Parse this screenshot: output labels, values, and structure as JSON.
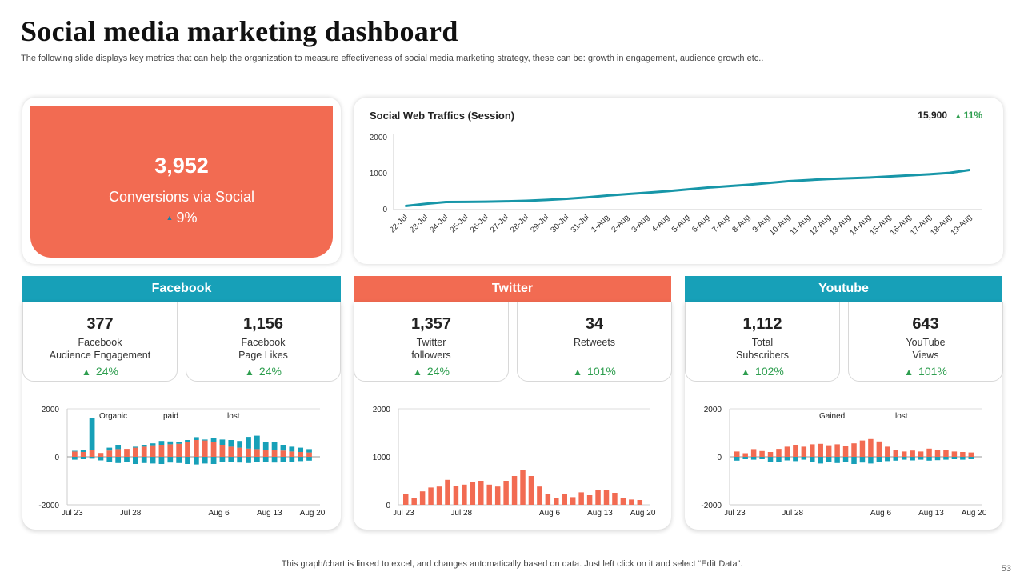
{
  "header": {
    "title": "Social media marketing dashboard",
    "subtitle": "The following slide displays key metrics that can help the organization to measure effectiveness of social media marketing strategy, these can be: growth in engagement, audience growth etc.."
  },
  "conversions": {
    "value": "3,952",
    "label": "Conversions via Social",
    "change": "9%"
  },
  "traffic": {
    "title": "Social Web Traffics (Session)",
    "total": "15,900",
    "change": "11%"
  },
  "sections": {
    "facebook": {
      "title": "Facebook",
      "metrics": [
        {
          "value": "377",
          "label": "Facebook\nAudience Engagement",
          "change": "24%"
        },
        {
          "value": "1,156",
          "label": "Facebook\nPage Likes",
          "change": "24%"
        }
      ]
    },
    "twitter": {
      "title": "Twitter",
      "metrics": [
        {
          "value": "1,357",
          "label": "Twitter\nfollowers",
          "change": "24%"
        },
        {
          "value": "34",
          "label": "Retweets",
          "change": "101%"
        }
      ]
    },
    "youtube": {
      "title": "Youtube",
      "metrics": [
        {
          "value": "1,112",
          "label": "Total\nSubscribers",
          "change": "102%"
        },
        {
          "value": "643",
          "label": "YouTube\nViews",
          "change": "101%"
        }
      ]
    }
  },
  "colors": {
    "teal": "#17a0b8",
    "coral": "#f26b52",
    "green": "#2e9e4f",
    "line": "#1796a8"
  },
  "footer": {
    "note": "This graph/chart is linked to excel,  and changes automatically based on data. Just left click on it and select “Edit Data”.",
    "page": "53"
  },
  "chart_data": [
    {
      "type": "line",
      "title": "Social Web Traffics (Session)",
      "categories": [
        "22-Jul",
        "23-Jul",
        "24-Jul",
        "25-Jul",
        "26-Jul",
        "27-Jul",
        "28-Jul",
        "29-Jul",
        "30-Jul",
        "31-Jul",
        "1-Aug",
        "2-Aug",
        "3-Aug",
        "4-Aug",
        "5-Aug",
        "6-Aug",
        "7-Aug",
        "8-Aug",
        "9-Aug",
        "10-Aug",
        "11-Aug",
        "12-Aug",
        "13-Aug",
        "14-Aug",
        "15-Aug",
        "16-Aug",
        "17-Aug",
        "18-Aug",
        "19-Aug"
      ],
      "values": [
        100,
        160,
        210,
        215,
        220,
        230,
        245,
        270,
        300,
        340,
        390,
        430,
        470,
        510,
        560,
        610,
        650,
        690,
        740,
        790,
        820,
        850,
        870,
        890,
        920,
        950,
        980,
        1020,
        1100
      ],
      "ylim": [
        0,
        2000
      ],
      "yticks": [
        0,
        1000,
        2000
      ]
    },
    {
      "type": "bar",
      "name": "facebook",
      "legend": [
        "Organic",
        "paid",
        "lost"
      ],
      "xticks": [
        "Jul 23",
        "Jul 28",
        "Aug 6",
        "Aug 13",
        "Aug 20"
      ],
      "ylim": [
        -2000,
        2000
      ],
      "yticks": [
        2000,
        0,
        -2000
      ],
      "series": [
        {
          "name": "Organic",
          "values": [
            250,
            300,
            1600,
            150,
            380,
            500,
            320,
            420,
            500,
            560,
            660,
            640,
            620,
            700,
            820,
            720,
            780,
            720,
            700,
            660,
            830,
            880,
            620,
            600,
            500,
            420,
            380,
            320
          ]
        },
        {
          "name": "paid",
          "values": [
            220,
            200,
            300,
            160,
            260,
            320,
            330,
            380,
            420,
            480,
            500,
            520,
            540,
            600,
            700,
            680,
            600,
            500,
            420,
            380,
            340,
            320,
            300,
            280,
            260,
            220,
            200,
            180
          ]
        },
        {
          "name": "lost",
          "values": [
            -120,
            -100,
            -80,
            -150,
            -200,
            -260,
            -220,
            -300,
            -260,
            -280,
            -300,
            -240,
            -260,
            -300,
            -320,
            -280,
            -300,
            -220,
            -200,
            -240,
            -260,
            -220,
            -200,
            -240,
            -220,
            -200,
            -180,
            -160
          ]
        }
      ]
    },
    {
      "type": "bar",
      "name": "twitter",
      "xticks": [
        "Jul 23",
        "Jul 28",
        "Aug 6",
        "Aug 13",
        "Aug 20"
      ],
      "ylim": [
        0,
        2000
      ],
      "yticks": [
        2000,
        1000,
        0
      ],
      "series": [
        {
          "name": "followers",
          "values": [
            220,
            150,
            280,
            360,
            380,
            520,
            400,
            420,
            480,
            500,
            420,
            380,
            500,
            600,
            720,
            600,
            380,
            220,
            150,
            220,
            160,
            260,
            200,
            300,
            300,
            250,
            140,
            110,
            100
          ]
        }
      ]
    },
    {
      "type": "bar",
      "name": "youtube",
      "legend": [
        "Gained",
        "lost"
      ],
      "xticks": [
        "Jul 23",
        "Jul 28",
        "Aug 6",
        "Aug 13",
        "Aug 20"
      ],
      "ylim": [
        -2000,
        2000
      ],
      "yticks": [
        2000,
        0,
        -2000
      ],
      "series": [
        {
          "name": "Gained",
          "values": [
            220,
            150,
            320,
            240,
            200,
            330,
            420,
            500,
            420,
            520,
            540,
            480,
            520,
            440,
            560,
            680,
            740,
            640,
            420,
            300,
            220,
            260,
            220,
            340,
            300,
            280,
            220,
            200,
            180
          ]
        },
        {
          "name": "lost",
          "values": [
            -160,
            -100,
            -120,
            -100,
            -220,
            -200,
            -150,
            -180,
            -120,
            -220,
            -280,
            -220,
            -260,
            -200,
            -300,
            -240,
            -280,
            -200,
            -180,
            -160,
            -120,
            -150,
            -120,
            -160,
            -140,
            -120,
            -100,
            -120,
            -100
          ]
        }
      ]
    }
  ]
}
